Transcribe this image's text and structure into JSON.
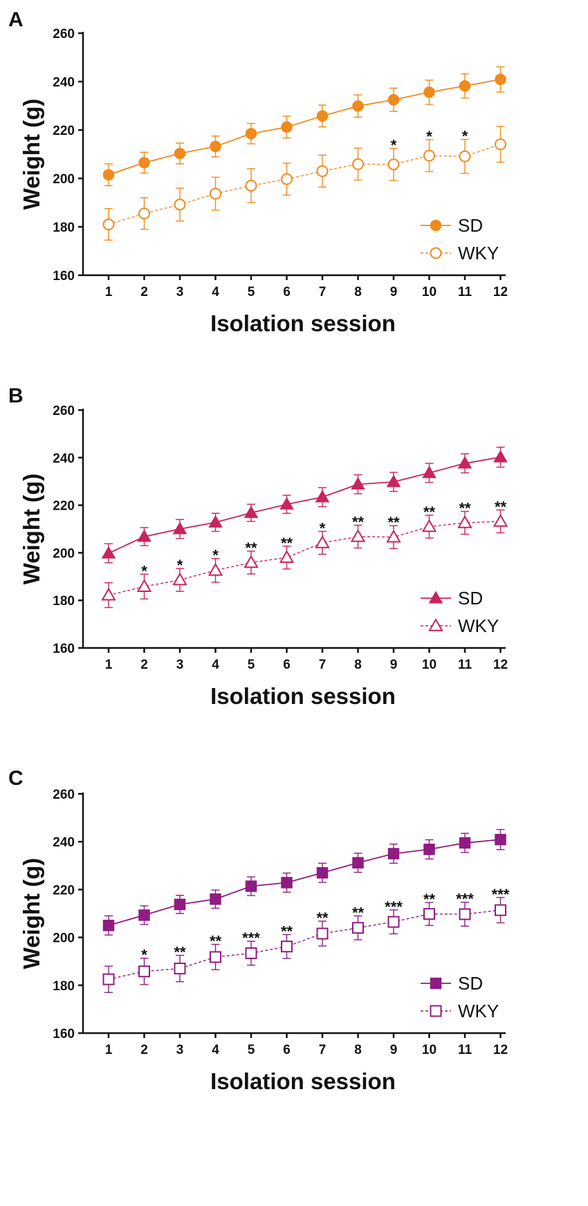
{
  "chart_data": [
    {
      "type": "line",
      "panel": "A",
      "xlabel": "Isolation session",
      "ylabel": "Weight (g)",
      "ylim": [
        160,
        260
      ],
      "yticks": [
        160,
        180,
        200,
        220,
        240,
        260
      ],
      "x": [
        1,
        2,
        3,
        4,
        5,
        6,
        7,
        8,
        9,
        10,
        11,
        12
      ],
      "marker": "circle",
      "color": "#F08A1C",
      "series": [
        {
          "name": "SD",
          "style": "solid",
          "filled": true,
          "values": [
            201.5,
            206.5,
            210.3,
            213.2,
            218.5,
            221.2,
            225.8,
            229.9,
            232.5,
            235.6,
            238.2,
            240.9
          ],
          "errors": [
            4.5,
            4.3,
            4.3,
            4.3,
            4.2,
            4.5,
            4.5,
            4.6,
            4.8,
            5.0,
            5.0,
            5.2
          ]
        },
        {
          "name": "WKY",
          "style": "dashed",
          "filled": false,
          "values": [
            181.0,
            185.5,
            189.2,
            193.7,
            197.0,
            199.7,
            203.0,
            205.9,
            205.8,
            209.4,
            209.1,
            214.1
          ],
          "errors": [
            6.5,
            6.5,
            6.8,
            6.8,
            7.0,
            6.6,
            6.6,
            6.6,
            6.6,
            6.6,
            7.0,
            7.4
          ]
        }
      ],
      "significance": [
        "",
        "",
        "",
        "",
        "",
        "",
        "",
        "",
        "*",
        "*",
        "*",
        ""
      ]
    },
    {
      "type": "line",
      "panel": "B",
      "xlabel": "Isolation session",
      "ylabel": "Weight (g)",
      "ylim": [
        160,
        260
      ],
      "yticks": [
        160,
        180,
        200,
        220,
        240,
        260
      ],
      "x": [
        1,
        2,
        3,
        4,
        5,
        6,
        7,
        8,
        9,
        10,
        11,
        12
      ],
      "marker": "triangle",
      "color": "#C8245E",
      "series": [
        {
          "name": "SD",
          "style": "solid",
          "filled": true,
          "values": [
            199.8,
            206.8,
            210.0,
            212.8,
            216.8,
            220.4,
            223.4,
            228.8,
            229.8,
            233.6,
            237.6,
            240.2
          ],
          "errors": [
            4.0,
            3.8,
            4.0,
            3.8,
            3.6,
            3.8,
            4.0,
            4.0,
            4.0,
            4.0,
            4.0,
            4.2
          ]
        },
        {
          "name": "WKY",
          "style": "dashed",
          "filled": false,
          "values": [
            182.2,
            185.8,
            188.6,
            192.6,
            195.9,
            198.0,
            204.2,
            206.8,
            206.6,
            211.0,
            212.6,
            213.2
          ],
          "errors": [
            5.2,
            5.2,
            4.8,
            5.0,
            4.8,
            4.8,
            4.8,
            4.8,
            4.8,
            4.8,
            4.8,
            4.8
          ]
        }
      ],
      "significance": [
        "",
        "*",
        "*",
        "*",
        "**",
        "**",
        "*",
        "**",
        "**",
        "**",
        "**",
        "**"
      ]
    },
    {
      "type": "line",
      "panel": "C",
      "xlabel": "Isolation session",
      "ylabel": "Weight (g)",
      "ylim": [
        160,
        260
      ],
      "yticks": [
        160,
        180,
        200,
        220,
        240,
        260
      ],
      "x": [
        1,
        2,
        3,
        4,
        5,
        6,
        7,
        8,
        9,
        10,
        11,
        12
      ],
      "marker": "square",
      "color": "#8E1C82",
      "series": [
        {
          "name": "SD",
          "style": "solid",
          "filled": true,
          "values": [
            205.0,
            209.3,
            213.8,
            216.0,
            221.4,
            222.9,
            227.0,
            231.2,
            235.0,
            236.8,
            239.5,
            240.9
          ],
          "errors": [
            4.0,
            3.9,
            3.8,
            3.8,
            3.9,
            4.0,
            4.0,
            4.0,
            4.0,
            4.0,
            4.0,
            4.2
          ]
        },
        {
          "name": "WKY",
          "style": "dashed",
          "filled": false,
          "values": [
            182.5,
            185.8,
            187.0,
            191.8,
            193.4,
            196.2,
            201.6,
            204.0,
            206.5,
            209.8,
            209.7,
            211.4
          ],
          "errors": [
            5.5,
            5.5,
            5.5,
            5.3,
            5.0,
            5.0,
            5.2,
            5.0,
            5.0,
            4.8,
            5.0,
            5.3
          ]
        }
      ],
      "significance": [
        "",
        "*",
        "**",
        "**",
        "***",
        "**",
        "**",
        "**",
        "***",
        "**",
        "***",
        "***"
      ]
    }
  ]
}
